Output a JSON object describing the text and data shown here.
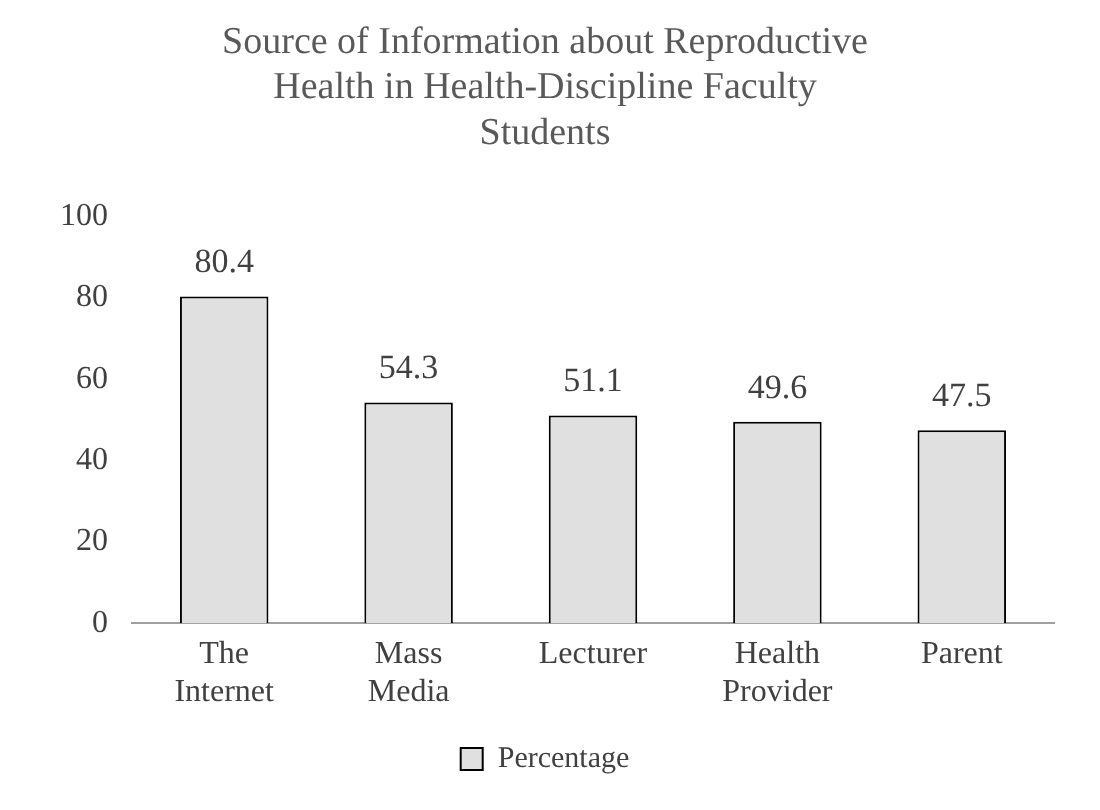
{
  "chart_data": {
    "type": "bar",
    "title": "Source of Information  about Reproductive Health in Health-Discipline Faculty Students",
    "categories": [
      "The Internet",
      "Mass Media",
      "Lecturer",
      "Health Provider",
      "Parent"
    ],
    "series": [
      {
        "name": "Percentage",
        "color": "#e0e0e0",
        "values": [
          80.4,
          54.3,
          51.1,
          49.6,
          47.5
        ]
      }
    ],
    "ylim": [
      0,
      100
    ],
    "yticks": [
      0,
      20,
      40,
      60,
      80,
      100
    ],
    "grid": false,
    "legend": "bottom",
    "data_labels": true
  }
}
